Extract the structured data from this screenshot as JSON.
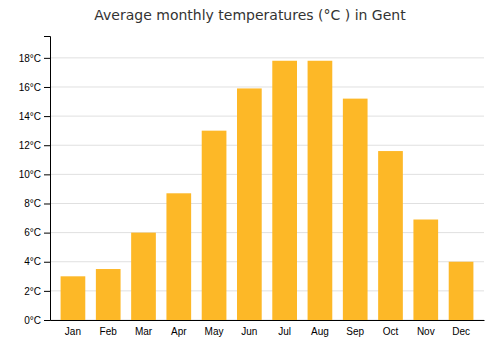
{
  "chart_data": {
    "type": "bar",
    "title": "Average monthly temperatures (°C ) in Gent",
    "categories": [
      "Jan",
      "Feb",
      "Mar",
      "Apr",
      "May",
      "Jun",
      "Jul",
      "Aug",
      "Sep",
      "Oct",
      "Nov",
      "Dec"
    ],
    "values": [
      3.0,
      3.5,
      6.0,
      8.7,
      13.0,
      15.9,
      17.8,
      17.8,
      15.2,
      11.6,
      6.9,
      4.0
    ],
    "color": "#FDB827",
    "ylim": [
      0,
      19.5
    ],
    "yticks": [
      {
        "value": 0,
        "label": "0°C"
      },
      {
        "value": 2,
        "label": "2°C"
      },
      {
        "value": 4,
        "label": "4°C"
      },
      {
        "value": 6,
        "label": "6°C"
      },
      {
        "value": 8,
        "label": "8°C"
      },
      {
        "value": 10,
        "label": "10°C"
      },
      {
        "value": 12,
        "label": "12°C"
      },
      {
        "value": 14,
        "label": "14°C"
      },
      {
        "value": 16,
        "label": "16°C"
      },
      {
        "value": 18,
        "label": "18°C"
      }
    ],
    "grid": true
  }
}
